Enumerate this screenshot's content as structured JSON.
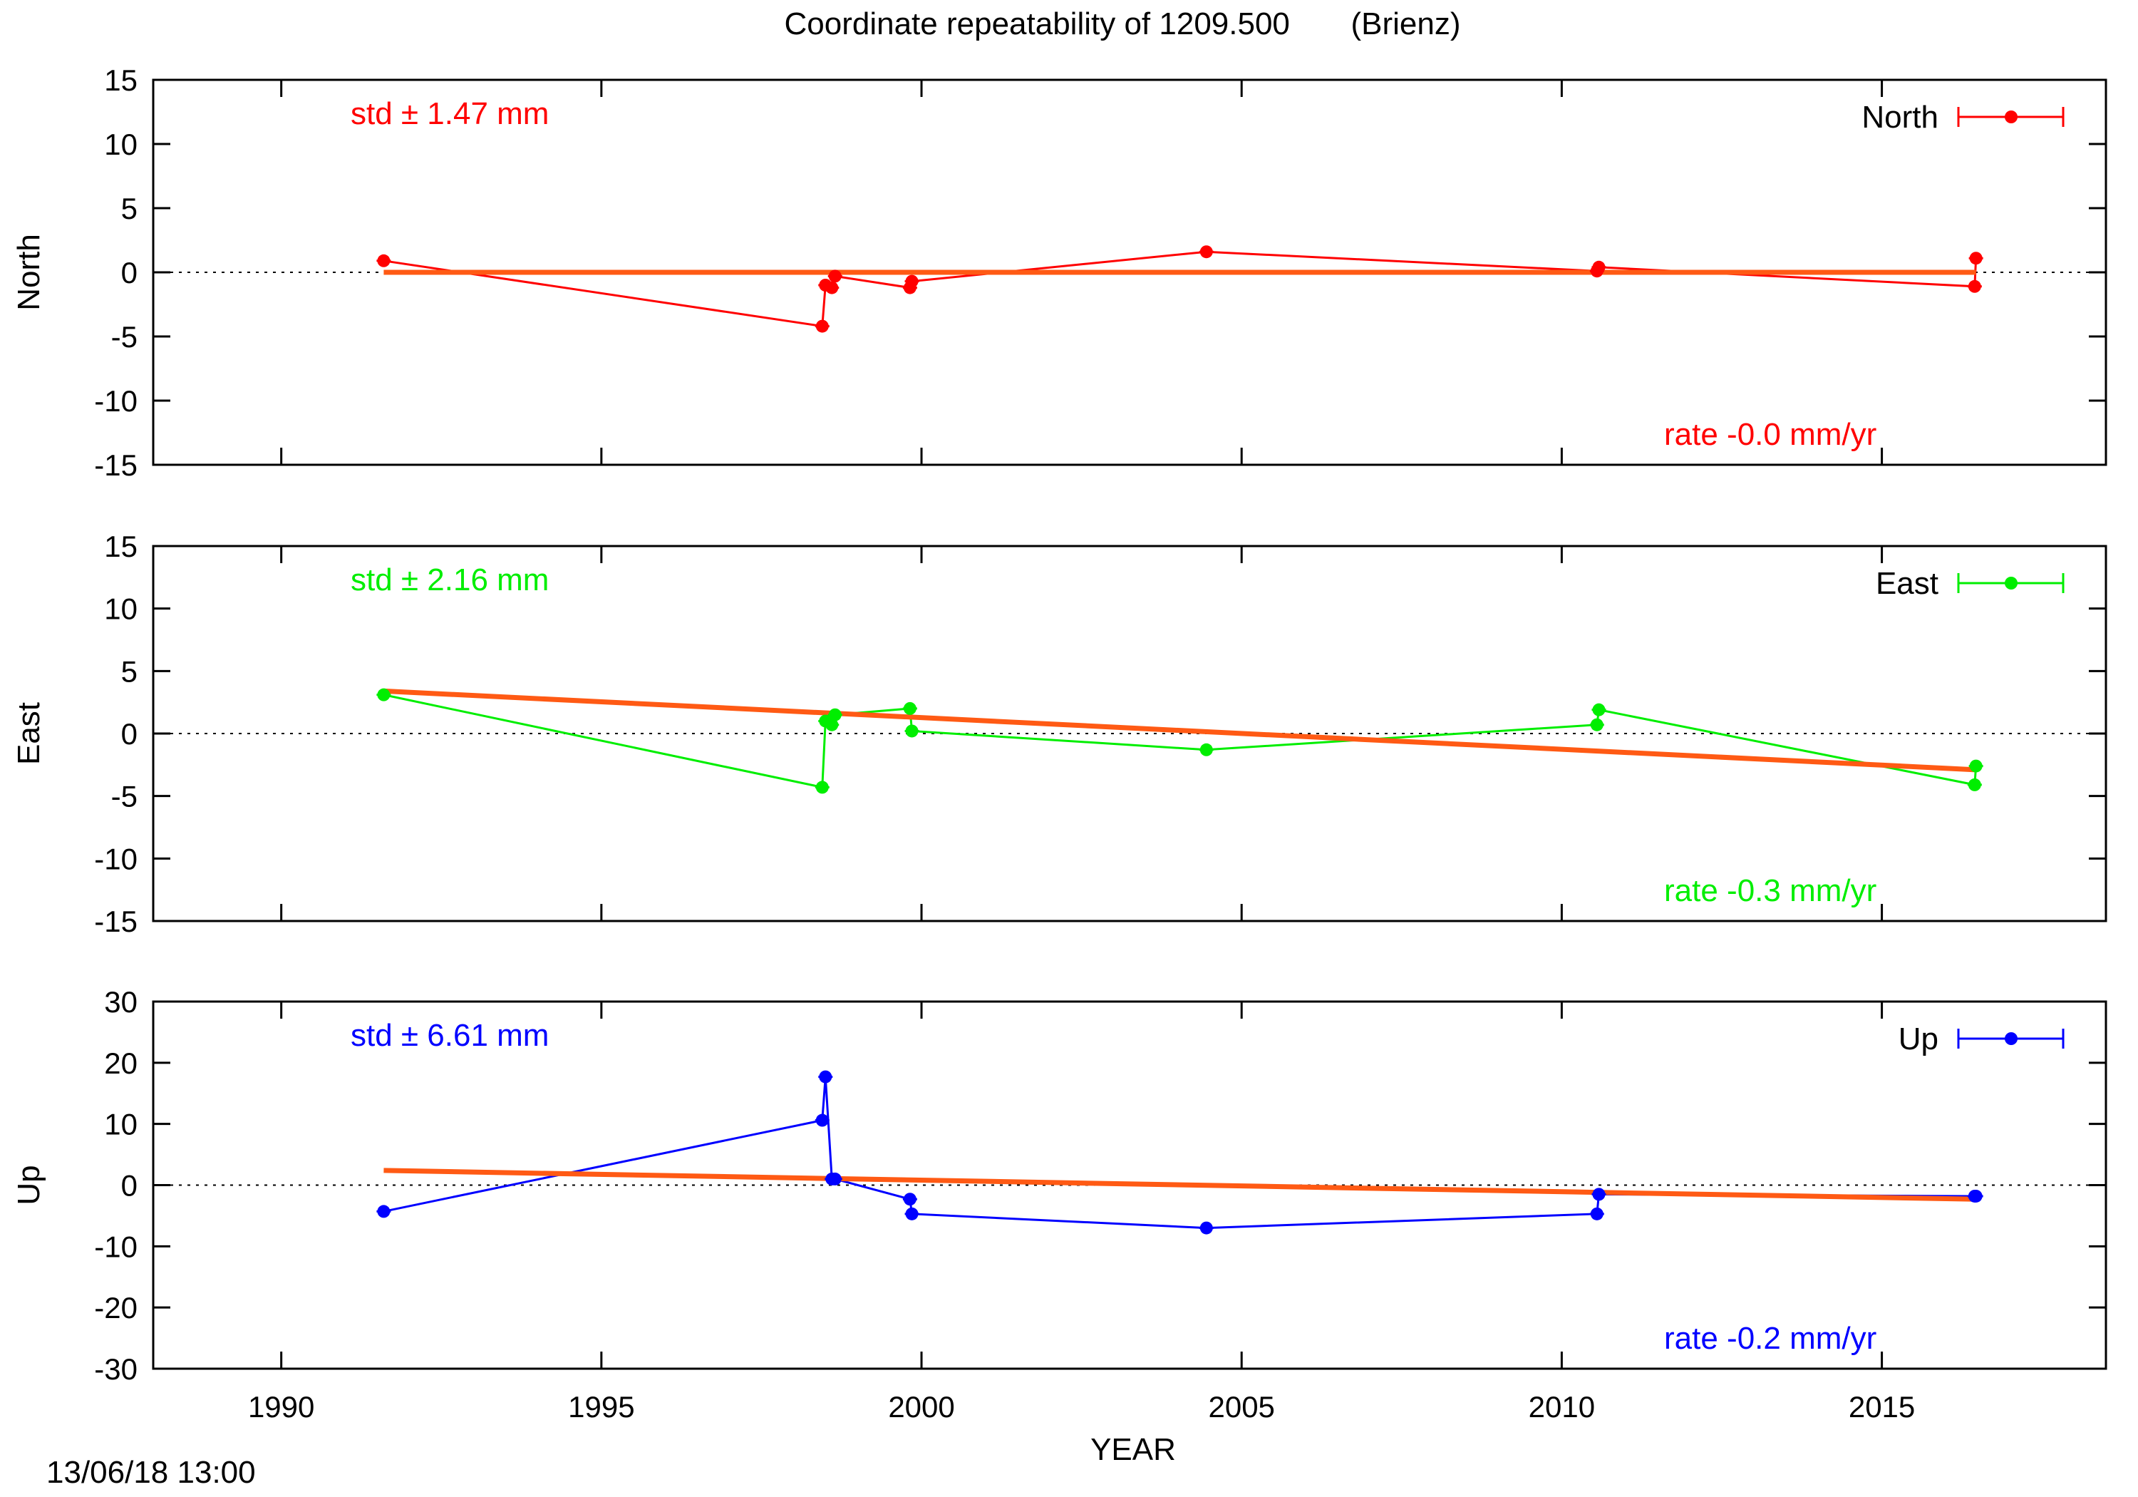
{
  "title": "Coordinate repeatability of 1209.500       (Brienz)",
  "timestamp": "13/06/18 13:00",
  "chart_data": {
    "type": "line",
    "xlabel": "YEAR",
    "xlim": [
      1988,
      2018.5
    ],
    "xticks": [
      1990,
      1995,
      2000,
      2005,
      2010,
      2015
    ],
    "panels": [
      {
        "name": "North",
        "ylabel": "North",
        "color": "#ff0000",
        "ylim": [
          -15,
          15
        ],
        "yticks": [
          -15,
          -10,
          -5,
          0,
          5,
          10,
          15
        ],
        "std_text": "std ± 1.47 mm",
        "rate_text": "rate -0.0 mm/yr",
        "x": [
          1991.6,
          1998.45,
          1998.5,
          1998.6,
          1998.65,
          1999.82,
          1999.85,
          2004.45,
          2010.55,
          2010.58,
          2016.45,
          2016.47
        ],
        "y": [
          0.9,
          -4.2,
          -1.0,
          -1.2,
          -0.3,
          -1.2,
          -0.7,
          1.6,
          0.1,
          0.4,
          -1.1,
          1.1
        ],
        "trend": {
          "x": [
            1991.6,
            2016.47
          ],
          "y": [
            0.0,
            0.0
          ]
        }
      },
      {
        "name": "East",
        "ylabel": "East",
        "color": "#00ee00",
        "ylim": [
          -15,
          15
        ],
        "yticks": [
          -15,
          -10,
          -5,
          0,
          5,
          10,
          15
        ],
        "std_text": "std ± 2.16 mm",
        "rate_text": "rate -0.3 mm/yr",
        "x": [
          1991.6,
          1998.45,
          1998.5,
          1998.6,
          1998.65,
          1999.82,
          1999.85,
          2004.45,
          2010.55,
          2010.58,
          2016.45,
          2016.47
        ],
        "y": [
          3.1,
          -4.3,
          1.0,
          0.7,
          1.5,
          2.0,
          0.2,
          -1.3,
          0.7,
          1.9,
          -4.1,
          -2.6
        ],
        "trend": {
          "x": [
            1991.6,
            2016.47
          ],
          "y": [
            3.4,
            -2.9
          ]
        }
      },
      {
        "name": "Up",
        "ylabel": "Up",
        "color": "#0000ff",
        "ylim": [
          -30,
          30
        ],
        "yticks": [
          -30,
          -20,
          -10,
          0,
          10,
          20,
          30
        ],
        "std_text": "std ± 6.61 mm",
        "rate_text": "rate -0.2 mm/yr",
        "x": [
          1991.6,
          1998.45,
          1998.5,
          1998.6,
          1998.65,
          1999.82,
          1999.85,
          2004.45,
          2010.55,
          2010.58,
          2016.45,
          2016.47
        ],
        "y": [
          -4.3,
          10.6,
          17.7,
          1.0,
          1.0,
          -2.3,
          -4.7,
          -7.0,
          -4.7,
          -1.5,
          -1.8,
          -1.8
        ],
        "trend": {
          "x": [
            1991.6,
            2016.47
          ],
          "y": [
            2.4,
            -2.3
          ]
        }
      }
    ],
    "trend_color": "#ff5a14"
  }
}
